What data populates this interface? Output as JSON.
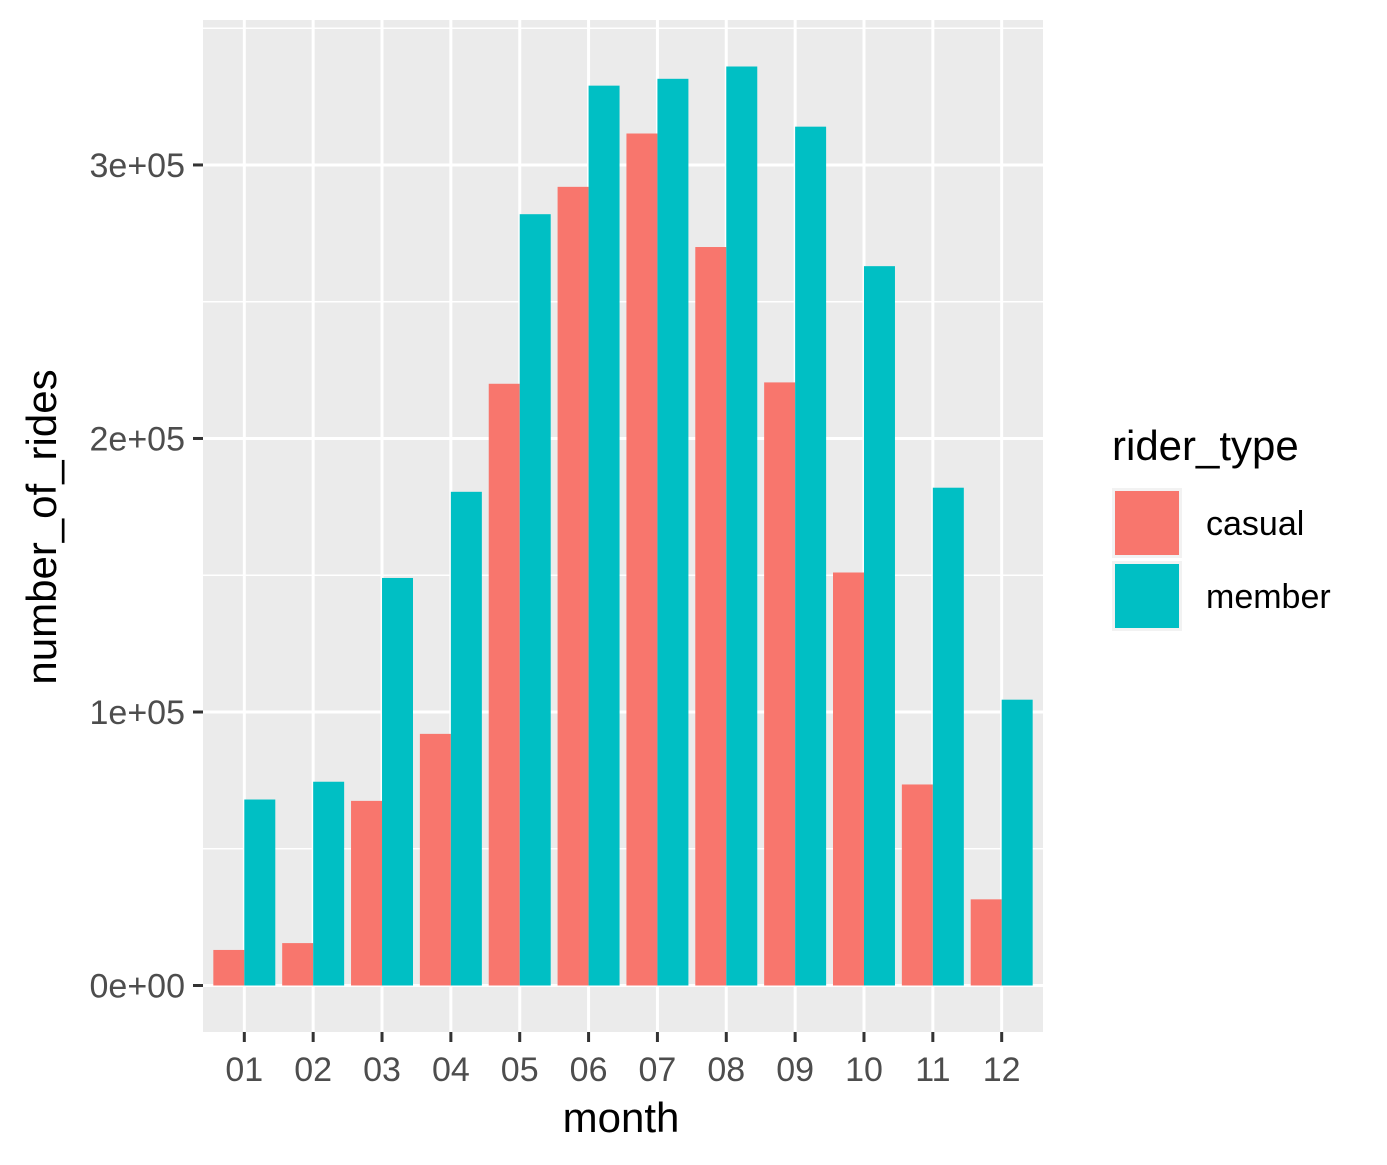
{
  "chart_data": {
    "type": "bar",
    "categories": [
      "01",
      "02",
      "03",
      "04",
      "05",
      "06",
      "07",
      "08",
      "09",
      "10",
      "11",
      "12"
    ],
    "series": [
      {
        "name": "casual",
        "color": "#F8766D",
        "values": [
          13000,
          15500,
          67500,
          92000,
          220000,
          292000,
          311500,
          270000,
          220500,
          151000,
          73500,
          31500
        ]
      },
      {
        "name": "member",
        "color": "#00BFC4",
        "values": [
          68000,
          74500,
          149000,
          180500,
          282000,
          329000,
          331500,
          336000,
          314000,
          263000,
          182000,
          104500
        ]
      }
    ],
    "ylim": [
      -17000,
      353000
    ],
    "yticks": [
      0,
      100000,
      200000,
      300000
    ],
    "yticklabels": [
      "0e+00",
      "1e+05",
      "2e+05",
      "3e+05"
    ],
    "xlabel": "month",
    "ylabel": "number_of_rides",
    "legend": {
      "title": "rider_type",
      "position": "right",
      "labels": [
        "casual",
        "member"
      ]
    },
    "panel_background": "#EBEBEB",
    "grid": true
  }
}
